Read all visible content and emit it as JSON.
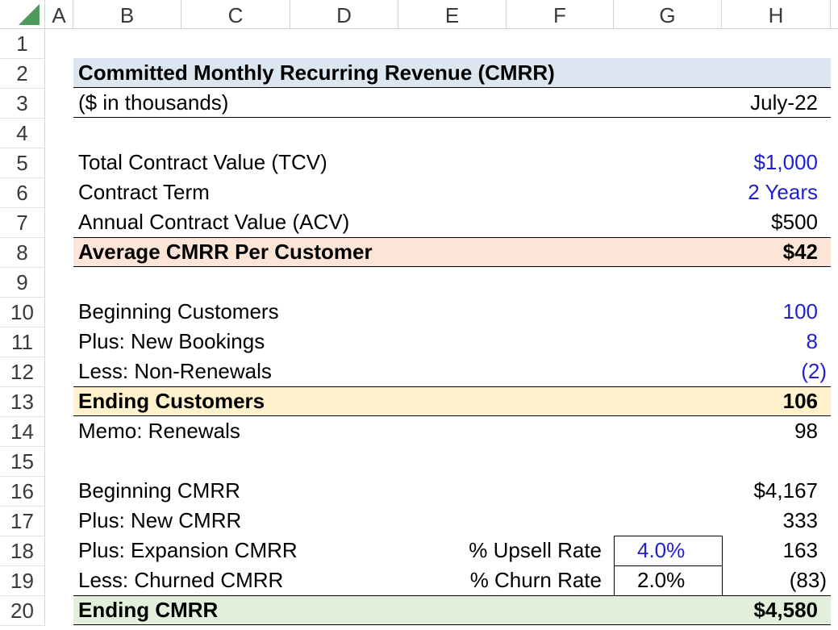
{
  "columns": [
    "A",
    "B",
    "C",
    "D",
    "E",
    "F",
    "G",
    "H"
  ],
  "rows": [
    "1",
    "2",
    "3",
    "4",
    "5",
    "6",
    "7",
    "8",
    "9",
    "10",
    "11",
    "12",
    "13",
    "14",
    "15",
    "16",
    "17",
    "18",
    "19",
    "20"
  ],
  "title": "Committed Monthly Recurring Revenue (CMRR)",
  "units": "($ in thousands)",
  "period": "July-22",
  "contract": {
    "tcv_label": "Total Contract Value (TCV)",
    "tcv_value": "$1,000",
    "term_label": "Contract Term",
    "term_value": "2 Years",
    "acv_label": "Annual Contract Value (ACV)",
    "acv_value": "$500",
    "avg_label": "Average CMRR Per Customer",
    "avg_value": "$42"
  },
  "customers": {
    "begin_label": "Beginning Customers",
    "begin_value": "100",
    "new_label": "Plus: New Bookings",
    "new_value": "8",
    "nonrenew_label": "Less: Non-Renewals",
    "nonrenew_value": "(2)",
    "end_label": "Ending Customers",
    "end_value": "106",
    "memo_label": "Memo: Renewals",
    "memo_value": "98"
  },
  "cmrr": {
    "begin_label": "Beginning CMRR",
    "begin_value": "$4,167",
    "new_label": "Plus: New CMRR",
    "new_value": "333",
    "exp_label": "Plus: Expansion CMRR",
    "exp_value": "163",
    "upsell_label": "% Upsell Rate",
    "upsell_value": "4.0%",
    "churn_cmrr_label": "Less: Churned CMRR",
    "churn_cmrr_value": "(83)",
    "churn_label": "% Churn Rate",
    "churn_value": "2.0%",
    "end_label": "Ending CMRR",
    "end_value": "$4,580"
  },
  "colors": {
    "title_band": "#dce6f1",
    "avg_band": "#fce4d6",
    "cust_band": "#fff2cc",
    "cmrr_band": "#e2efda",
    "input_blue": "#1f1fd1"
  }
}
